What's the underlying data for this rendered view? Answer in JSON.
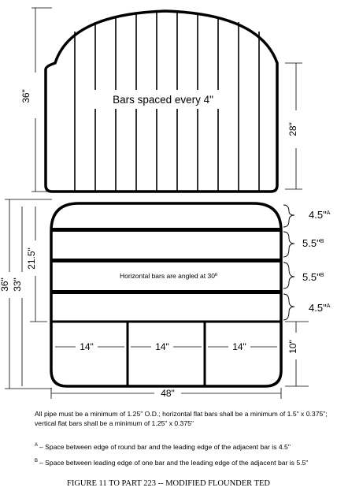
{
  "top_frame": {
    "height_label": "36\"",
    "inner_height_label": "28\"",
    "center_label": "Bars spaced every 4\""
  },
  "bottom_frame": {
    "total_height_label": "36\"",
    "height_label_33": "33\"",
    "height_label_21_5": "21.5\"",
    "width_label": "48\"",
    "bottom_height_label": "10\"",
    "center_label": "Horizontal bars are angled at 30º",
    "spacing_labels": [
      {
        "value": "4.5\"",
        "marker": "A"
      },
      {
        "value": "5.5\"",
        "marker": "B"
      },
      {
        "value": "5.5\"",
        "marker": "B"
      },
      {
        "value": "4.5\"",
        "marker": "A"
      }
    ],
    "bottom_section_labels": [
      "14\"",
      "14\"",
      "14\""
    ]
  },
  "notes": {
    "main": "All pipe must be a minimum of 1.25\" O.D.; horizontal flat bars shall be a minimum of 1.5\" x 0.375\"; vertical flat bars shall be a minimum of  1.25\" x 0.375\"",
    "note_a_marker": "A",
    "note_a": "– Space between edge of round bar and the leading edge of the adjacent  bar is 4.5\"",
    "note_b_marker": "B",
    "note_b": "– Space between leading edge of one bar and the leading edge of the adjacent  bar is 5.5\""
  },
  "caption": "FIGURE 11 TO PART 223 -- MODIFIED FLOUNDER TED"
}
